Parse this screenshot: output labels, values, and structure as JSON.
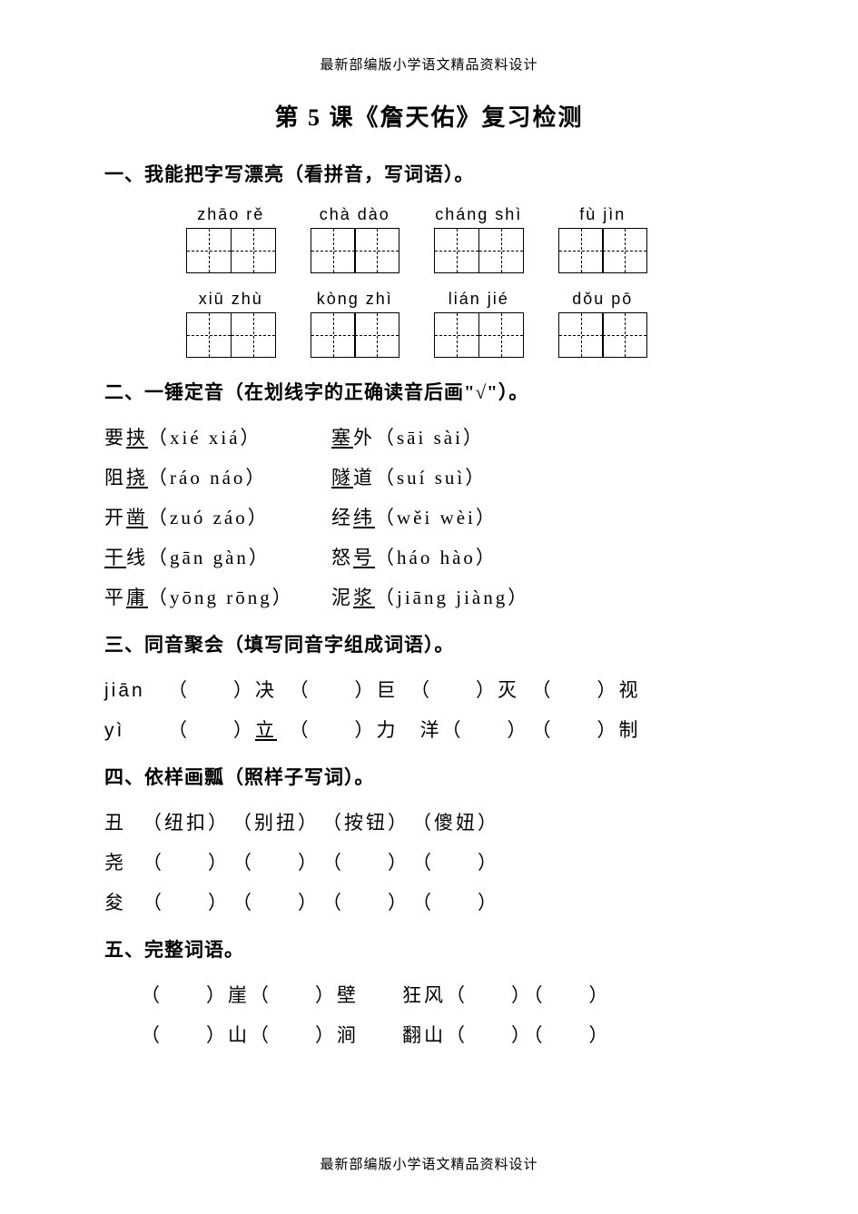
{
  "header": "最新部编版小学语文精品资料设计",
  "footer": "最新部编版小学语文精品资料设计",
  "title": "第 5 课《詹天佑》复习检测",
  "section1": {
    "heading": "一、我能把字写漂亮（看拼音，写词语）。",
    "row1": [
      "zhāo rě",
      "chà dào",
      "cháng shì",
      "fù jìn"
    ],
    "row2": [
      "xiū zhù",
      "kòng zhì",
      "lián jié",
      "dǒu pō"
    ]
  },
  "section2": {
    "heading": "二、一锤定音（在划线字的正确读音后画\"√\"）。",
    "items": [
      {
        "left_pre": "要",
        "left_ul": "挟",
        "left_py": "（xié  xiá）",
        "right_ul": "塞",
        "right_post": "外",
        "right_py": "（sāi  sài）"
      },
      {
        "left_pre": "阻",
        "left_ul": "挠",
        "left_py": "（ráo  náo）",
        "right_ul": "隧",
        "right_post": "道",
        "right_py": "（suí  suì）"
      },
      {
        "left_pre": "开",
        "left_ul": "凿",
        "left_py": "（zuó  záo）",
        "right_pre2": "经",
        "right_ul": "纬",
        "right_py": "（wěi  wèi）"
      },
      {
        "left_ul": "干",
        "left_post": "线",
        "left_py": "（gān  gàn）",
        "right_pre2": "怒",
        "right_ul": "号",
        "right_py": "（háo  hào）"
      },
      {
        "left_pre": "平",
        "left_ul": "庸",
        "left_py": "（yōng  rōng）",
        "right_pre2": "泥",
        "right_ul": "浆",
        "right_py": "（jiāng  jiàng）"
      }
    ]
  },
  "section3": {
    "heading": "三、同音聚会（填写同音字组成词语）。",
    "rows": [
      {
        "py": "jiān",
        "w1": "决",
        "w2": "巨",
        "w3": "灭",
        "w4": "视",
        "ul": []
      },
      {
        "py": "yì",
        "w1": "立",
        "w2": "力",
        "pre3": "洋",
        "w3": "",
        "w4": "制",
        "ul": [
          1
        ]
      }
    ]
  },
  "section4": {
    "heading": "四、依样画瓢（照样子写词）。",
    "example": {
      "char": "丑",
      "words": [
        "（纽扣）",
        "（别扭）",
        "（按钮）",
        "（傻妞）"
      ]
    },
    "rows": [
      {
        "char": "尧"
      },
      {
        "char": "夋"
      }
    ]
  },
  "section5": {
    "heading": "五、完整词语。",
    "rows": [
      {
        "a1": "崖",
        "a2": "壁",
        "b": "狂风"
      },
      {
        "a1": "山",
        "a2": "涧",
        "b": "翻山"
      }
    ]
  },
  "colors": {
    "text": "#000000",
    "background": "#ffffff"
  },
  "fonts": {
    "body": "SimSun",
    "pinyin": "Arial",
    "title_size": 26,
    "heading_size": 21,
    "body_size": 21
  }
}
